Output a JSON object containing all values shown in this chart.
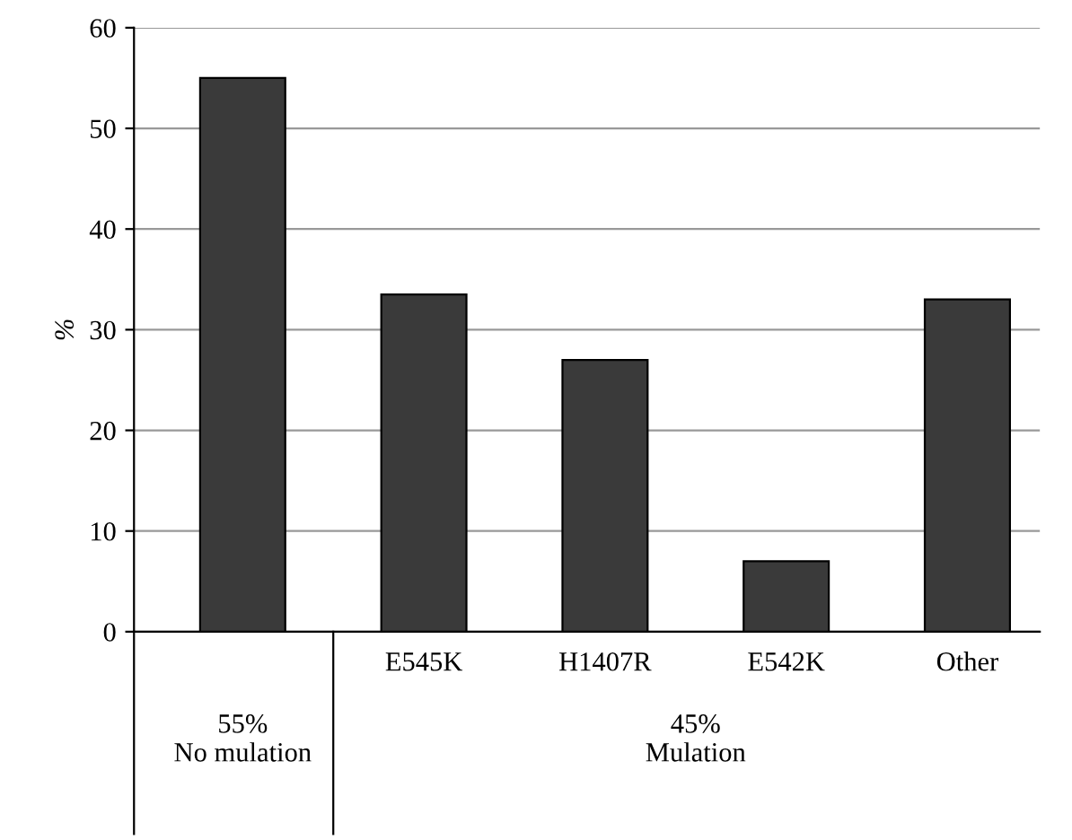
{
  "chart_data": {
    "type": "bar",
    "ylabel": "%",
    "categories": [
      null,
      "E545K",
      "H1407R",
      "E542K",
      "Other"
    ],
    "values": [
      55,
      33.5,
      27,
      7,
      33
    ],
    "color": "#3a3a3a",
    "ylim": [
      0,
      60
    ],
    "yticks": [
      0,
      10,
      20,
      30,
      40,
      50,
      60
    ],
    "grid": "y",
    "annotations": [
      "55%\nNo mulation",
      "45%\nMulation"
    ]
  }
}
